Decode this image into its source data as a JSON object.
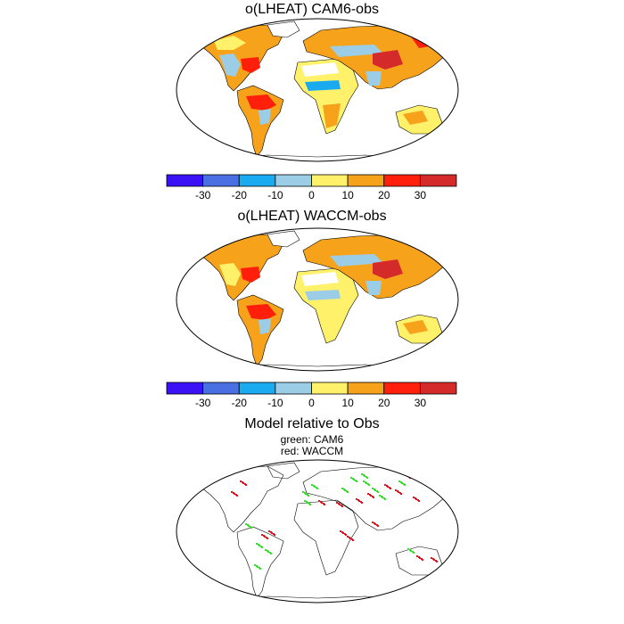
{
  "panels": [
    {
      "title": "o(LHEAT) CAM6-obs"
    },
    {
      "title": "o(LHEAT) WACCM-obs"
    },
    {
      "title": "Model relative to Obs",
      "subtitle_lines": [
        "green: CAM6",
        "red: WACCM"
      ]
    }
  ],
  "colorbar": {
    "colors": [
      "#3b11f5",
      "#4a6fe3",
      "#19aaf0",
      "#9ccde6",
      "#fff26a",
      "#f7a21b",
      "#ff1f0a",
      "#d42a2a"
    ],
    "labels": [
      "-30",
      "-20",
      "-10",
      "0",
      "10",
      "20",
      "30"
    ]
  }
}
